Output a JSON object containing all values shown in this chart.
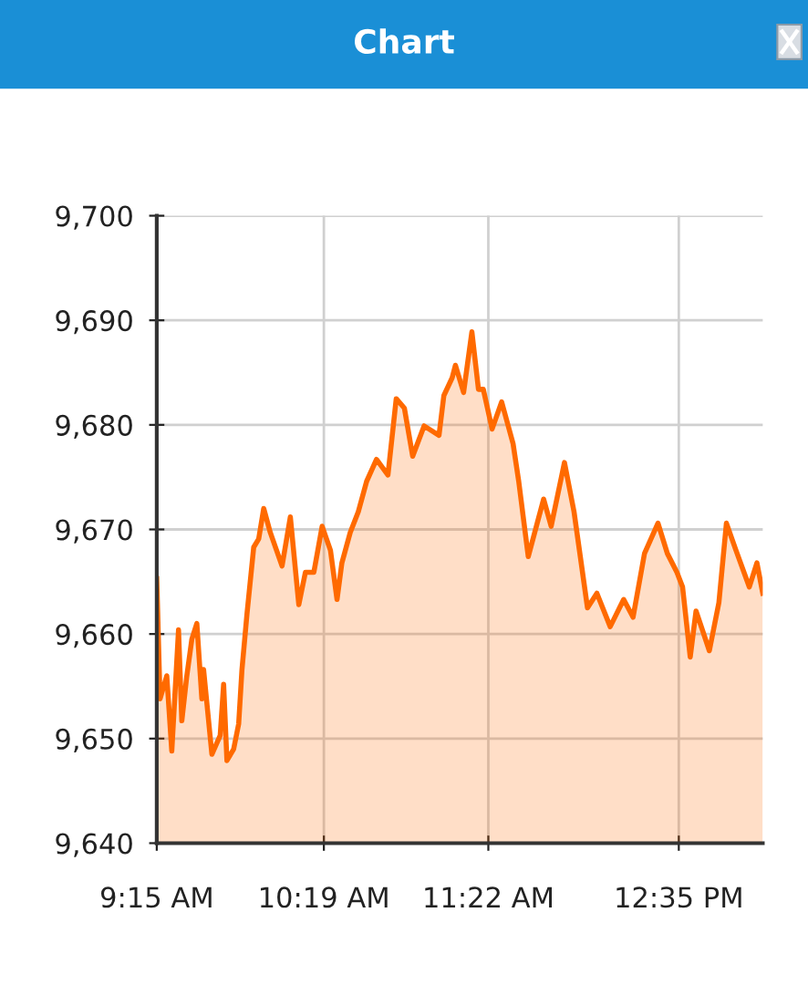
{
  "chart_data": {
    "type": "area",
    "title": "Chart",
    "xlim": [
      9.25,
      13.119
    ],
    "xticks": [
      {
        "value": 9.25,
        "label": "9:15 AM"
      },
      {
        "value": 10.317,
        "label": "10:19 AM"
      },
      {
        "value": 11.367,
        "label": "11:22 AM"
      },
      {
        "value": 12.583,
        "label": "12:35 PM"
      }
    ],
    "ylim": [
      9640,
      9700
    ],
    "yticks": [
      {
        "value": 9640,
        "label": "9,640"
      },
      {
        "value": 9650,
        "label": "9,650"
      },
      {
        "value": 9660,
        "label": "9,660"
      },
      {
        "value": 9670,
        "label": "9,670"
      },
      {
        "value": 9680,
        "label": "9,680"
      },
      {
        "value": 9690,
        "label": "9,690"
      },
      {
        "value": 9700,
        "label": "9,700"
      }
    ],
    "grid": true,
    "legend": false,
    "series": [
      {
        "color": "#ff6a00",
        "x": [
          9.25,
          9.271,
          9.314,
          9.346,
          9.389,
          9.41,
          9.442,
          9.474,
          9.506,
          9.538,
          9.549,
          9.602,
          9.655,
          9.677,
          9.698,
          9.741,
          9.773,
          9.794,
          9.826,
          9.869,
          9.901,
          9.933,
          9.975,
          10.05,
          10.103,
          10.157,
          10.199,
          10.253,
          10.306,
          10.359,
          10.401,
          10.432,
          10.485,
          10.537,
          10.59,
          10.653,
          10.726,
          10.779,
          10.831,
          10.884,
          10.957,
          11.052,
          11.083,
          11.136,
          11.157,
          11.209,
          11.262,
          11.304,
          11.335,
          11.391,
          11.452,
          11.525,
          11.561,
          11.622,
          11.72,
          11.768,
          11.853,
          11.914,
          12.0,
          12.06,
          12.145,
          12.231,
          12.291,
          12.364,
          12.45,
          12.51,
          12.571,
          12.607,
          12.656,
          12.693,
          12.778,
          12.839,
          12.887,
          12.948,
          13.033,
          13.082,
          13.119
        ],
        "values": [
          9665.3,
          9653.8,
          9656,
          9648.8,
          9660.4,
          9651.7,
          9656,
          9659.5,
          9661,
          9653.8,
          9656.6,
          9648.5,
          9650.3,
          9655.2,
          9647.9,
          9649,
          9651.4,
          9656.6,
          9661.9,
          9668.3,
          9669.1,
          9672,
          9669.7,
          9666.5,
          9671.2,
          9662.8,
          9665.9,
          9665.9,
          9670.3,
          9668,
          9663.3,
          9666.8,
          9669.7,
          9671.7,
          9674.6,
          9676.7,
          9675.2,
          9682.5,
          9681.6,
          9677,
          9679.9,
          9679,
          9682.8,
          9684.5,
          9685.7,
          9683.1,
          9688.9,
          9683.4,
          9683.4,
          9679.6,
          9682.2,
          9678.2,
          9674.6,
          9667.4,
          9672.9,
          9670.3,
          9676.4,
          9671.7,
          9662.5,
          9663.9,
          9660.7,
          9663.3,
          9661.6,
          9667.7,
          9670.6,
          9667.7,
          9665.9,
          9664.5,
          9657.8,
          9662.2,
          9658.4,
          9663,
          9670.6,
          9668,
          9664.5,
          9666.8,
          9663.9
        ]
      }
    ]
  }
}
